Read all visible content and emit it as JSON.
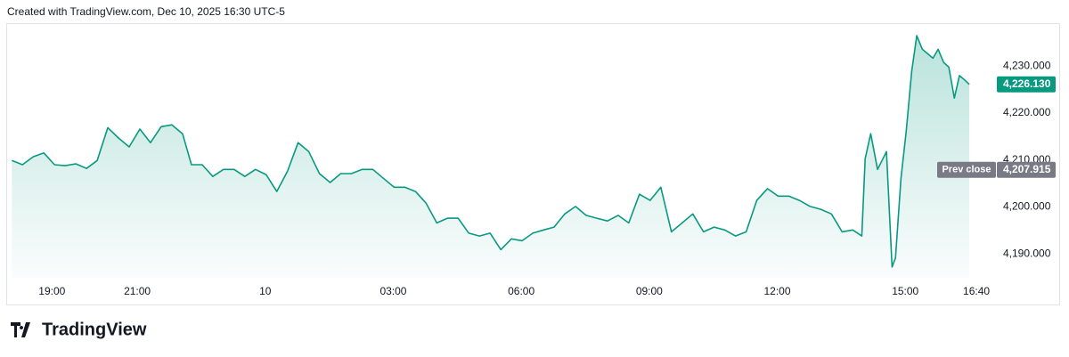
{
  "chart_data": {
    "type": "area",
    "title": "Created with TradingView.com, Dec 10, 2025 16:30 UTC-5",
    "brand": "TradingView",
    "color": "#089981",
    "grid": false,
    "x": [
      0.06,
      0.31,
      0.56,
      0.81,
      1.06,
      1.31,
      1.56,
      1.81,
      2.06,
      2.31,
      2.56,
      2.81,
      3.06,
      3.31,
      3.56,
      3.81,
      4.06,
      4.27,
      4.52,
      4.77,
      5.02,
      5.27,
      5.52,
      5.77,
      6.02,
      6.27,
      6.52,
      6.77,
      7.02,
      7.27,
      7.52,
      7.77,
      8.02,
      8.27,
      8.52,
      8.77,
      9.02,
      9.27,
      9.52,
      9.77,
      10.02,
      10.27,
      10.52,
      10.77,
      11.02,
      11.27,
      11.52,
      11.77,
      12.02,
      12.27,
      12.52,
      12.77,
      13.02,
      13.27,
      13.52,
      13.77,
      14.02,
      14.27,
      14.52,
      14.77,
      15.02,
      15.27,
      15.52,
      15.77,
      16.02,
      16.27,
      16.52,
      16.77,
      17.02,
      17.27,
      17.52,
      17.77,
      18.02,
      18.27,
      18.52,
      18.77,
      19.02,
      19.27,
      19.52,
      19.77,
      19.98,
      20.06,
      20.19,
      20.35,
      20.56,
      20.69,
      20.77,
      20.9,
      21.02,
      21.15,
      21.27,
      21.4,
      21.52,
      21.65,
      21.77,
      21.9,
      22.02,
      22.15,
      22.27,
      22.4,
      22.5
    ],
    "values": [
      4209.9,
      4209.0,
      4210.7,
      4211.5,
      4209.0,
      4208.8,
      4209.2,
      4208.2,
      4209.9,
      4216.9,
      4214.7,
      4212.8,
      4216.6,
      4213.7,
      4217.1,
      4217.5,
      4215.6,
      4209.0,
      4209.0,
      4206.5,
      4208.0,
      4208.0,
      4206.5,
      4208.0,
      4206.9,
      4203.3,
      4207.6,
      4213.7,
      4211.8,
      4207.1,
      4205.2,
      4207.1,
      4207.1,
      4208.0,
      4208.0,
      4206.1,
      4204.2,
      4204.2,
      4203.3,
      4200.8,
      4196.6,
      4197.6,
      4197.6,
      4194.4,
      4193.8,
      4194.4,
      4190.9,
      4193.2,
      4192.8,
      4194.4,
      4195.1,
      4195.7,
      4198.5,
      4200.1,
      4198.2,
      4197.6,
      4197.0,
      4198.2,
      4196.6,
      4202.7,
      4201.4,
      4204.2,
      4194.7,
      4196.6,
      4198.5,
      4194.7,
      4195.7,
      4195.1,
      4193.8,
      4194.7,
      4201.4,
      4203.9,
      4202.3,
      4202.3,
      4201.4,
      4200.1,
      4199.5,
      4198.5,
      4194.7,
      4195.1,
      4193.8,
      4210.3,
      4215.6,
      4208.0,
      4211.8,
      4187.2,
      4189.1,
      4206.1,
      4216.0,
      4228.9,
      4236.5,
      4233.6,
      4232.7,
      4231.7,
      4233.6,
      4230.8,
      4229.8,
      4223.2,
      4228.0,
      4227.0,
      4226.13
    ],
    "xlim": [
      -0.05,
      23
    ],
    "xticks": [
      {
        "value": 1,
        "label": "19:00"
      },
      {
        "value": 3,
        "label": "21:00"
      },
      {
        "value": 6,
        "label": "10"
      },
      {
        "value": 9,
        "label": "03:00"
      },
      {
        "value": 12,
        "label": "06:00"
      },
      {
        "value": 15,
        "label": "09:00"
      },
      {
        "value": 18,
        "label": "12:00"
      },
      {
        "value": 21,
        "label": "15:00"
      },
      {
        "value": 22.667,
        "label": "16:40"
      }
    ],
    "ylim": [
      4184.9,
      4238.8
    ],
    "yticks": [
      {
        "value": 4190,
        "label": "4,190.000"
      },
      {
        "value": 4200,
        "label": "4,200.000"
      },
      {
        "value": 4210,
        "label": "4,210.000"
      },
      {
        "value": 4220,
        "label": "4,220.000"
      },
      {
        "value": 4230,
        "label": "4,230.000"
      }
    ],
    "last_price": {
      "value": 4226.13,
      "label": "4,226.130"
    },
    "prev_close": {
      "name": "Prev close",
      "value": 4207.915,
      "label": "4,207.915"
    }
  }
}
